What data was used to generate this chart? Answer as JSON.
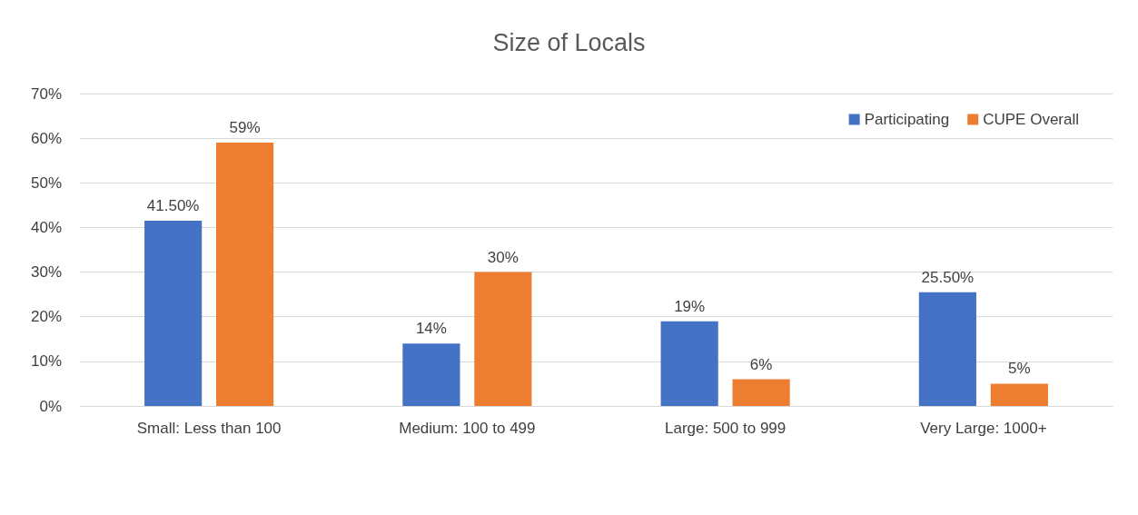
{
  "chart_data": {
    "type": "bar",
    "title": "Size of Locals",
    "categories": [
      "Small: Less than 100",
      "Medium: 100 to 499",
      "Large: 500 to 999",
      "Very Large: 1000+"
    ],
    "series": [
      {
        "name": "Participating",
        "color": "#4472c4",
        "values": [
          41.5,
          14,
          19,
          25.5
        ],
        "value_labels": [
          "41.50%",
          "14%",
          "19%",
          "25.50%"
        ]
      },
      {
        "name": "CUPE Overall",
        "color": "#ed7d31",
        "values": [
          59,
          30,
          6,
          5
        ],
        "value_labels": [
          "59%",
          "30%",
          "6%",
          "5%"
        ]
      }
    ],
    "ylim": [
      0,
      70
    ],
    "yticks": [
      {
        "value": 0,
        "label": "0%"
      },
      {
        "value": 10,
        "label": "10%"
      },
      {
        "value": 20,
        "label": "20%"
      },
      {
        "value": 30,
        "label": "30%"
      },
      {
        "value": 40,
        "label": "40%"
      },
      {
        "value": 50,
        "label": "50%"
      },
      {
        "value": 60,
        "label": "60%"
      },
      {
        "value": 70,
        "label": "70%"
      }
    ],
    "grid": "y",
    "legend": "top right"
  }
}
